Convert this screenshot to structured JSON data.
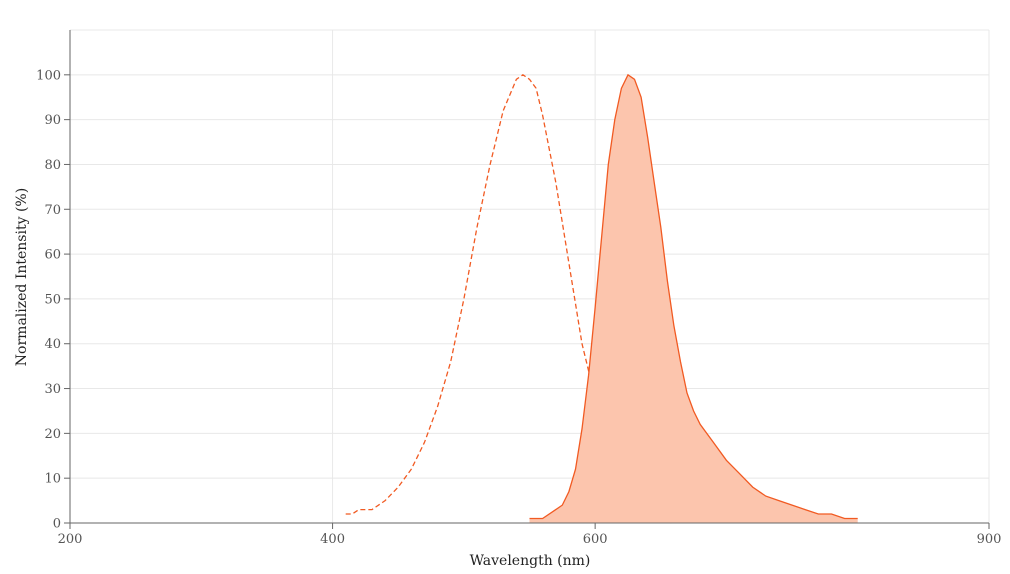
{
  "chart_data": {
    "type": "area",
    "xlabel": "Wavelength (nm)",
    "ylabel": "Normalized Intensity (%)",
    "xlim": [
      200,
      900
    ],
    "ylim": [
      0,
      110
    ],
    "x_ticks": [
      200,
      400,
      600,
      900
    ],
    "y_ticks": [
      0,
      10,
      20,
      30,
      40,
      50,
      60,
      70,
      80,
      90,
      100
    ],
    "grid": true,
    "colors": {
      "line": "#f15a22",
      "fill": "#fcc5ad",
      "grid": "#e8e8e8",
      "axis": "#666666"
    },
    "series": [
      {
        "style": "dashed",
        "fill": false,
        "points": [
          [
            410,
            2
          ],
          [
            415,
            2
          ],
          [
            420,
            3
          ],
          [
            430,
            3
          ],
          [
            440,
            5
          ],
          [
            450,
            8
          ],
          [
            460,
            12
          ],
          [
            470,
            18
          ],
          [
            480,
            26
          ],
          [
            490,
            36
          ],
          [
            500,
            50
          ],
          [
            510,
            66
          ],
          [
            520,
            80
          ],
          [
            530,
            92
          ],
          [
            540,
            99
          ],
          [
            545,
            100
          ],
          [
            550,
            99
          ],
          [
            555,
            97
          ],
          [
            560,
            91
          ],
          [
            570,
            76
          ],
          [
            580,
            58
          ],
          [
            590,
            40
          ],
          [
            600,
            28
          ],
          [
            610,
            16
          ],
          [
            620,
            8
          ],
          [
            630,
            4
          ],
          [
            640,
            2
          ],
          [
            650,
            1
          ],
          [
            658,
            0
          ]
        ]
      },
      {
        "style": "solid",
        "fill": true,
        "points": [
          [
            550,
            1
          ],
          [
            560,
            1
          ],
          [
            570,
            3
          ],
          [
            575,
            4
          ],
          [
            580,
            7
          ],
          [
            585,
            12
          ],
          [
            590,
            21
          ],
          [
            595,
            33
          ],
          [
            600,
            48
          ],
          [
            605,
            64
          ],
          [
            610,
            80
          ],
          [
            615,
            90
          ],
          [
            620,
            97
          ],
          [
            625,
            100
          ],
          [
            630,
            99
          ],
          [
            635,
            95
          ],
          [
            640,
            86
          ],
          [
            645,
            76
          ],
          [
            650,
            66
          ],
          [
            655,
            54
          ],
          [
            660,
            44
          ],
          [
            665,
            36
          ],
          [
            670,
            29
          ],
          [
            675,
            25
          ],
          [
            680,
            22
          ],
          [
            690,
            18
          ],
          [
            700,
            14
          ],
          [
            710,
            11
          ],
          [
            720,
            8
          ],
          [
            730,
            6
          ],
          [
            740,
            5
          ],
          [
            750,
            4
          ],
          [
            760,
            3
          ],
          [
            770,
            2
          ],
          [
            780,
            2
          ],
          [
            790,
            1
          ],
          [
            800,
            1
          ]
        ]
      }
    ]
  }
}
